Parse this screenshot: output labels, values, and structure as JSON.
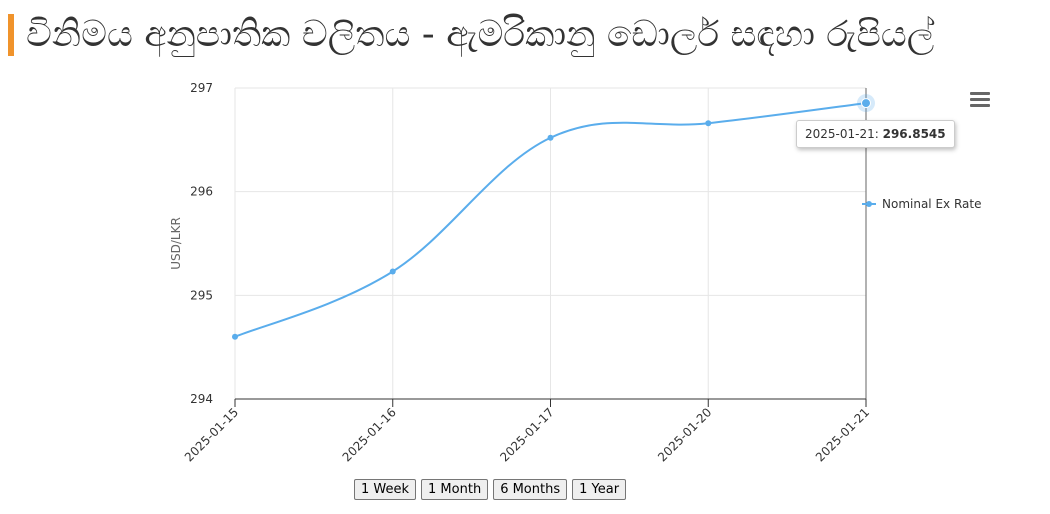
{
  "page": {
    "title": "විනිමය අනුපාතික චලිතය - ඇමරිකානු ඩොලර් සඳහා රුපියල්"
  },
  "menu": {
    "icon": "hamburger-menu-icon"
  },
  "range_buttons": [
    "1 Week",
    "1 Month",
    "6 Months",
    "1 Year"
  ],
  "tooltip": {
    "date": "2025-01-21",
    "separator": ": ",
    "value": "296.8545"
  },
  "colors": {
    "series": "#5aadec",
    "accent": "#f0932b",
    "grid": "#e6e6e6"
  },
  "chart_data": {
    "type": "line",
    "title": "",
    "xlabel": "",
    "ylabel": "USD/LKR",
    "x": [
      "2025-01-15",
      "2025-01-16",
      "2025-01-17",
      "2025-01-20",
      "2025-01-21"
    ],
    "series": [
      {
        "name": "Nominal Ex Rate",
        "values": [
          294.6,
          295.23,
          296.52,
          296.66,
          296.8545
        ]
      }
    ],
    "ylim": [
      294,
      297
    ],
    "yticks": [
      294,
      295,
      296,
      297
    ],
    "grid": true,
    "legend": "right",
    "highlight_index": 4
  }
}
